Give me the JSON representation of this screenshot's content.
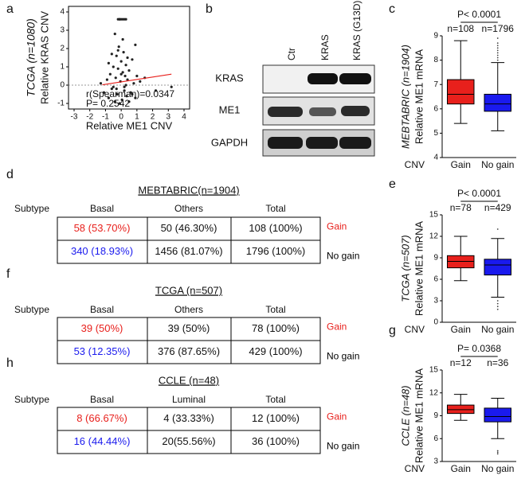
{
  "panel_labels": [
    "a",
    "b",
    "c",
    "d",
    "e",
    "f",
    "g",
    "h"
  ],
  "chart_data": [
    {
      "type": "scatter",
      "title": "TCGA (n=1080)",
      "ylabel": "Relative KRAS CNV",
      "xlabel": "Relative ME1 CNV",
      "annotations": [
        "r(Spearman)=0.0347",
        "P= 0.2542"
      ],
      "color": "#222222",
      "xlim": [
        -3,
        4
      ],
      "xticks": [
        -3,
        -2,
        -1,
        0,
        1,
        2,
        3,
        4
      ],
      "ylim": [
        -1,
        4
      ],
      "yticks": [
        -1,
        0,
        1,
        2,
        3,
        4
      ],
      "hline": 0,
      "fit_line": {
        "color": "#e8201c",
        "x": [
          -1.2,
          3.2
        ],
        "y": [
          0.02,
          0.6
        ]
      },
      "x": [
        -1.1,
        -0.9,
        -0.8,
        -0.7,
        -0.6,
        -0.5,
        -0.4,
        -0.35,
        -0.3,
        -0.25,
        -0.2,
        -0.15,
        -0.1,
        -0.05,
        0,
        0.05,
        0.1,
        0.15,
        0.2,
        0.25,
        0.3,
        0.35,
        0.4,
        0.5,
        0.6,
        0.7,
        0.8,
        0.9,
        1.0,
        1.2,
        -0.6,
        -0.3,
        0.1,
        0.3,
        0.5,
        -0.8,
        -0.2,
        0.2,
        0.7,
        -0.4,
        0.0,
        0.4,
        -0.1,
        -0.2,
        -0.1,
        0.0,
        0.1,
        0.2,
        0.3,
        1.5,
        2.2,
        3.2,
        -1.3,
        0.9,
        -0.5
      ],
      "y": [
        -0.4,
        0.3,
        -0.7,
        0.6,
        -0.2,
        1.0,
        -0.9,
        0.4,
        1.6,
        -0.5,
        0.9,
        2.1,
        -1.0,
        0.2,
        1.3,
        -0.8,
        0.7,
        1.8,
        -0.3,
        0.5,
        1.1,
        -0.6,
        0.3,
        0.8,
        -0.4,
        1.4,
        0.1,
        -0.7,
        0.5,
        0.2,
        1.7,
        -0.2,
        2.5,
        0.0,
        -0.9,
        1.2,
        1.9,
        -0.1,
        -0.5,
        2.8,
        0.6,
        1.5,
        3.6,
        3.6,
        3.6,
        3.6,
        3.6,
        3.6,
        3.6,
        0.4,
        -0.3,
        -0.1,
        0.1,
        2.2,
        -0.1
      ]
    },
    {
      "type": "box",
      "title": "MEBTABRIC (n=1904)",
      "ylabel": "Relative ME1 mRNA",
      "xlabel": "CNV",
      "categories": [
        "Gain",
        "No gain"
      ],
      "counts": [
        "n=108",
        "n=1796"
      ],
      "p_value": "P< 0.0001",
      "ylim": [
        4,
        9
      ],
      "yticks": [
        4,
        5,
        6,
        7,
        8,
        9
      ],
      "boxes": [
        {
          "color": "#e8201c",
          "min": 5.4,
          "q1": 6.2,
          "median": 6.6,
          "q3": 7.2,
          "max": 8.8,
          "outliers": []
        },
        {
          "color": "#1a1aee",
          "min": 5.1,
          "q1": 5.9,
          "median": 6.2,
          "q3": 6.6,
          "max": 7.9,
          "outliers": [
            8.0,
            8.1,
            8.2,
            8.3,
            8.4,
            8.5,
            8.6,
            8.7,
            8.9
          ]
        }
      ]
    },
    {
      "type": "box",
      "title": "TCGA (n=507)",
      "ylabel": "Relative ME1 mRNA",
      "xlabel": "CNV",
      "categories": [
        "Gain",
        "No gain"
      ],
      "counts": [
        "n=78",
        "n=429"
      ],
      "p_value": "P< 0.0001",
      "ylim": [
        0,
        15
      ],
      "yticks": [
        0,
        3,
        6,
        9,
        12,
        15
      ],
      "boxes": [
        {
          "color": "#e8201c",
          "min": 5.8,
          "q1": 7.6,
          "median": 8.5,
          "q3": 9.3,
          "max": 12,
          "outliers": []
        },
        {
          "color": "#1a1aee",
          "min": 3.5,
          "q1": 6.6,
          "median": 8,
          "q3": 8.8,
          "max": 11.7,
          "outliers": [
            13,
            3,
            2.6,
            2.2,
            1.8
          ]
        }
      ]
    },
    {
      "type": "box",
      "title": "CCLE (n=48)",
      "ylabel": "Relative ME1 mRNA",
      "xlabel": "CNV",
      "categories": [
        "Gain",
        "No gain"
      ],
      "counts": [
        "n=12",
        "n=36"
      ],
      "p_value": "P= 0.0368",
      "ylim": [
        3,
        15
      ],
      "yticks": [
        3,
        6,
        9,
        12,
        15
      ],
      "boxes": [
        {
          "color": "#e8201c",
          "min": 8.4,
          "q1": 9.3,
          "median": 9.8,
          "q3": 10.4,
          "max": 11.8,
          "outliers": []
        },
        {
          "color": "#1a1aee",
          "min": 6.0,
          "q1": 8.2,
          "median": 8.9,
          "q3": 10.0,
          "max": 11.3,
          "outliers": [
            4.4,
            4.2,
            4.0
          ]
        }
      ]
    }
  ],
  "blot": {
    "lanes": [
      "Ctr",
      "KRAS",
      "KRAS (G13D)"
    ],
    "rows": [
      "KRAS",
      "ME1",
      "GAPDH"
    ]
  },
  "tables": [
    {
      "title": "MEBTABRIC(n=1904)",
      "header": [
        "Subtype",
        "Basal",
        "Others",
        "Total"
      ],
      "rows": [
        {
          "cells": [
            "58 (53.70%)",
            "50 (46.30%)",
            "108 (100%)"
          ],
          "group": "Gain",
          "color": "#e8201c",
          "group_color": "#e8201c"
        },
        {
          "cells": [
            "340 (18.93%)",
            "1456 (81.07%)",
            "1796 (100%)"
          ],
          "group": "No gain",
          "color": "#1a1aee",
          "group_color": "#000000"
        }
      ]
    },
    {
      "title": "TCGA (n=507)",
      "header": [
        "Subtype",
        "Basal",
        "Others",
        "Total"
      ],
      "rows": [
        {
          "cells": [
            "39 (50%)",
            "39 (50%)",
            "78 (100%)"
          ],
          "group": "Gain",
          "color": "#e8201c",
          "group_color": "#e8201c"
        },
        {
          "cells": [
            "53 (12.35%)",
            "376 (87.65%)",
            "429 (100%)"
          ],
          "group": "No gain",
          "color": "#1a1aee",
          "group_color": "#000000"
        }
      ]
    },
    {
      "title": "CCLE (n=48)",
      "header": [
        "Subtype",
        "Basal",
        "Luminal",
        "Total"
      ],
      "rows": [
        {
          "cells": [
            "8 (66.67%)",
            "4 (33.33%)",
            "12 (100%)"
          ],
          "group": "Gain",
          "color": "#e8201c",
          "group_color": "#e8201c"
        },
        {
          "cells": [
            "16 (44.44%)",
            "20(55.56%)",
            "36 (100%)"
          ],
          "group": "No gain",
          "color": "#1a1aee",
          "group_color": "#000000"
        }
      ]
    }
  ]
}
